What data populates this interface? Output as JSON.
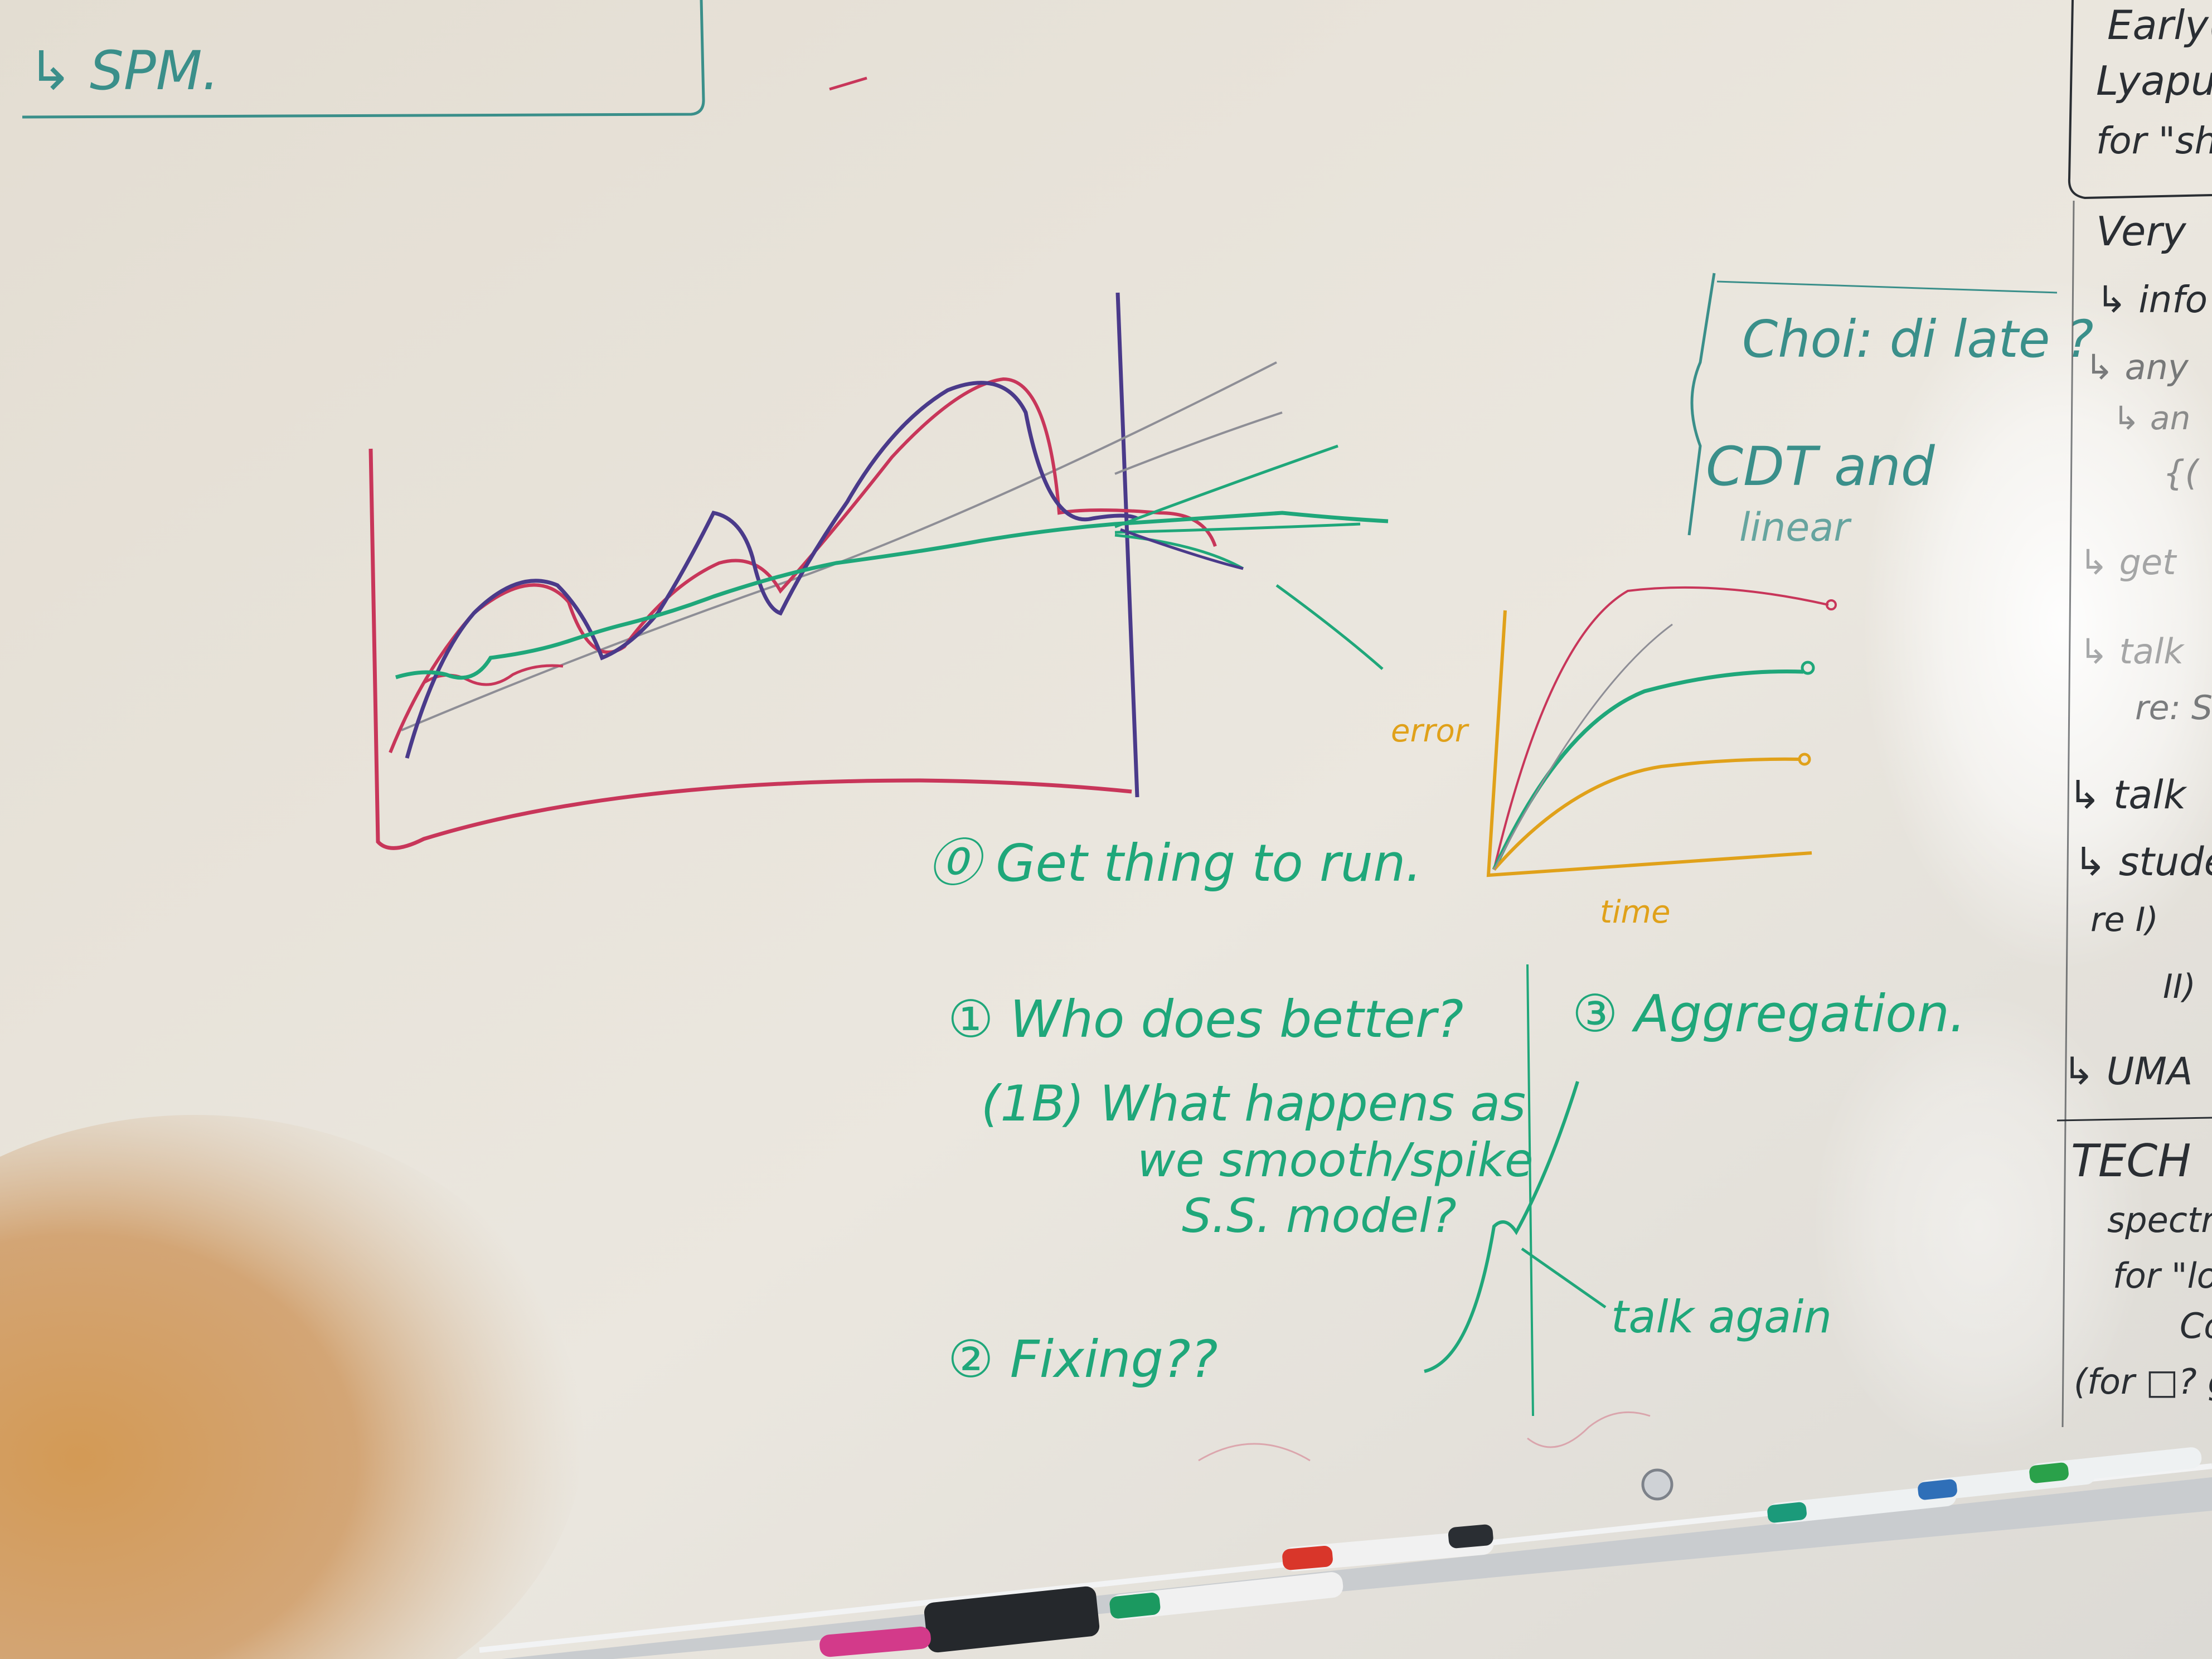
{
  "colors": {
    "board": "#e9e4da",
    "board_light": "#f5f3ee",
    "marker_green": "#1fa77a",
    "marker_purple": "#4a3a8a",
    "marker_red": "#c8365a",
    "marker_orange": "#e0a11a",
    "marker_gray": "#8e8e96",
    "marker_dark": "#2a2e33",
    "marker_teal": "#3a8f8a",
    "finger": "#d39a55"
  },
  "top_left": {
    "line": "↳ SPM."
  },
  "graph": {
    "items": [
      {
        "label": "⓪ Get thing to run."
      },
      {
        "label": "① Who does better?"
      },
      {
        "label": "(1B) What happens as"
      },
      {
        "label": "we smooth/spike"
      },
      {
        "label": "S.S. model?"
      },
      {
        "label": "② Fixing??"
      },
      {
        "label": "③ Aggregation."
      }
    ]
  },
  "error_chart": {
    "ylabel": "error",
    "xlabel": "time"
  },
  "center_right": {
    "candidate": "Choi: di late ?",
    "cdt_line1": "CDT and",
    "cdt_line2": "linear",
    "talk_again": "talk again"
  },
  "right_column": {
    "lines": [
      "Early(?",
      "Lyapun",
      "for \"sh",
      "Very",
      "↳ info",
      "↳ any",
      "↳ an",
      "{(",
      "↳ get",
      "↳ talk",
      "re: S",
      "↳ talk",
      "↳ stude",
      "re I)",
      "II)",
      "↳ UMA",
      "TECH",
      "spectra",
      "for \"lo",
      "Co",
      "(for □? g"
    ]
  }
}
